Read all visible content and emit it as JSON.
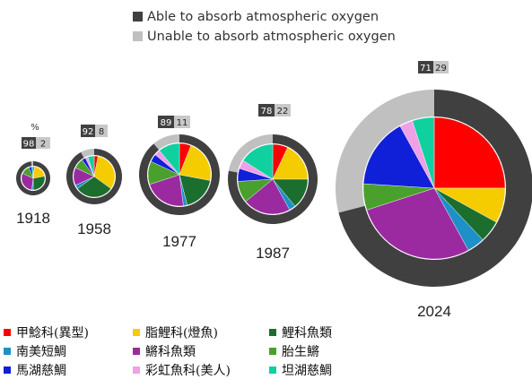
{
  "chart_data": {
    "type": "pie",
    "legend_top": [
      {
        "key": "able",
        "label": "Able to absorb atmospheric oxygen",
        "color": "#404040"
      },
      {
        "key": "unable",
        "label": "Unable to absorb atmospheric oxygen",
        "color": "#c0c0c0"
      }
    ],
    "percent_symbol": "%",
    "categories": [
      {
        "label": "甲鯰科(異型)",
        "color": "#ff0000"
      },
      {
        "label": "脂鯉科(燈魚)",
        "color": "#f5cc00"
      },
      {
        "label": "鯉科魚類",
        "color": "#1b6e2e"
      },
      {
        "label": "南美短鯛",
        "color": "#1e90c8"
      },
      {
        "label": "鱂科魚類",
        "color": "#9b2aa0"
      },
      {
        "label": "胎生鱂",
        "color": "#4aa02c"
      },
      {
        "label": "馬湖慈鯛",
        "color": "#1020d8"
      },
      {
        "label": "彩虹魚科(美人)",
        "color": "#f0a0e6"
      },
      {
        "label": "坦湖慈鯛",
        "color": "#10d0a0"
      }
    ],
    "years": [
      {
        "year": "1918",
        "able": 98,
        "unable": 2,
        "slices": [
          2,
          20,
          28,
          2,
          30,
          12,
          4,
          0,
          2
        ]
      },
      {
        "year": "1958",
        "able": 92,
        "unable": 8,
        "slices": [
          3,
          32,
          30,
          3,
          14,
          8,
          3,
          2,
          5
        ]
      },
      {
        "year": "1977",
        "able": 89,
        "unable": 11,
        "slices": [
          6,
          22,
          18,
          2,
          22,
          12,
          4,
          3,
          11
        ]
      },
      {
        "year": "1987",
        "able": 78,
        "unable": 22,
        "slices": [
          7,
          18,
          14,
          3,
          22,
          10,
          6,
          4,
          16
        ]
      },
      {
        "year": "2024",
        "able": 71,
        "unable": 29,
        "slices": [
          25,
          8,
          5,
          4,
          28,
          6,
          16,
          3,
          5
        ]
      }
    ]
  }
}
